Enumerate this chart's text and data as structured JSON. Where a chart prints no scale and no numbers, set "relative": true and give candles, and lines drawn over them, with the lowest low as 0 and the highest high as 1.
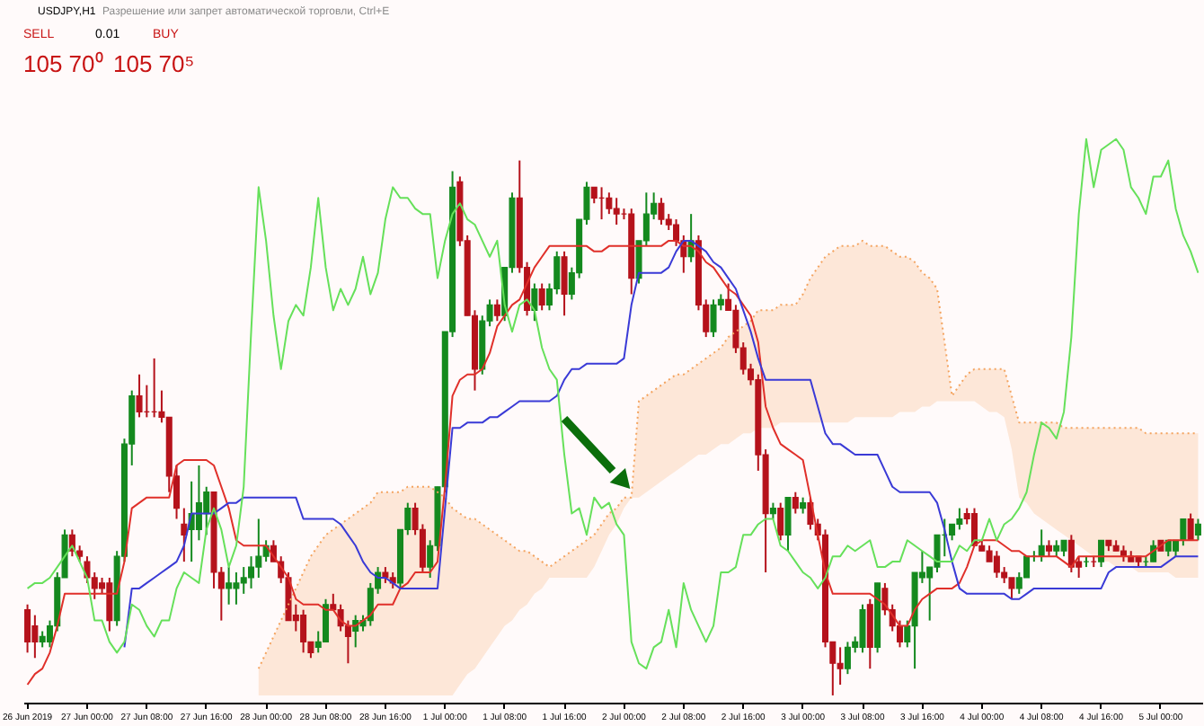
{
  "chart_data": {
    "type": "candlestick",
    "title": "USDJPY,H1",
    "relative": true,
    "categories": [
      "26 Jun 2019",
      null,
      null,
      null,
      null,
      null,
      null,
      null,
      "27 Jun 00:00",
      null,
      null,
      null,
      null,
      null,
      null,
      null,
      "27 Jun 08:00",
      null,
      null,
      null,
      null,
      null,
      null,
      null,
      "27 Jun 16:00",
      null,
      null,
      null,
      null,
      null,
      null,
      null,
      "28 Jun 00:00",
      null,
      null,
      null,
      null,
      null,
      null,
      null,
      "28 Jun 08:00",
      null,
      null,
      null,
      null,
      null,
      null,
      null,
      "28 Jun 16:00",
      null,
      null,
      null,
      null,
      null,
      null,
      null,
      "1 Jul 00:00",
      null,
      null,
      null,
      null,
      null,
      null,
      null,
      "1 Jul 08:00",
      null,
      null,
      null,
      null,
      null,
      null,
      null,
      "1 Jul 16:00",
      null,
      null,
      null,
      null,
      null,
      null,
      null,
      "2 Jul 00:00",
      null,
      null,
      null,
      null,
      null,
      null,
      null,
      "2 Jul 08:00",
      null,
      null,
      null,
      null,
      null,
      null,
      null,
      "2 Jul 16:00",
      null,
      null,
      null,
      null,
      null,
      null,
      null,
      "3 Jul 00:00",
      null,
      null,
      null,
      null,
      null,
      null,
      null,
      "3 Jul 08:00",
      null,
      null,
      null,
      null,
      null,
      null,
      null,
      "3 Jul 16:00",
      null,
      null,
      null,
      null,
      null,
      null,
      null,
      "4 Jul 00:00",
      null,
      null,
      null,
      null,
      null,
      null,
      null,
      "4 Jul 08:00",
      null,
      null,
      null,
      null,
      null,
      null,
      null,
      "4 Jul 16:00",
      null,
      null,
      null,
      null,
      null,
      null,
      null,
      "5 Jul 00:00",
      null,
      null,
      null,
      null,
      null
    ],
    "ohlc": [
      [
        0.16,
        0.17,
        0.08,
        0.1
      ],
      [
        0.13,
        0.15,
        0.07,
        0.1
      ],
      [
        0.1,
        0.12,
        0.09,
        0.11
      ],
      [
        0.1,
        0.14,
        0.09,
        0.13
      ],
      [
        0.13,
        0.23,
        0.12,
        0.22
      ],
      [
        0.22,
        0.31,
        0.22,
        0.3
      ],
      [
        0.3,
        0.31,
        0.26,
        0.27
      ],
      [
        0.27,
        0.28,
        0.25,
        0.26
      ],
      [
        0.25,
        0.26,
        0.21,
        0.22
      ],
      [
        0.22,
        0.23,
        0.18,
        0.2
      ],
      [
        0.21,
        0.22,
        0.19,
        0.2
      ],
      [
        0.21,
        0.22,
        0.12,
        0.14
      ],
      [
        0.14,
        0.27,
        0.13,
        0.26
      ],
      [
        0.26,
        0.48,
        0.25,
        0.47
      ],
      [
        0.47,
        0.57,
        0.43,
        0.56
      ],
      [
        0.56,
        0.6,
        0.52,
        0.53
      ],
      [
        0.53,
        0.58,
        0.52,
        0.53
      ],
      [
        0.53,
        0.63,
        0.52,
        0.53
      ],
      [
        0.53,
        0.57,
        0.51,
        0.52
      ],
      [
        0.52,
        0.52,
        0.38,
        0.41
      ],
      [
        0.41,
        0.43,
        0.33,
        0.35
      ],
      [
        0.32,
        0.35,
        0.25,
        0.3
      ],
      [
        0.31,
        0.4,
        0.25,
        0.34
      ],
      [
        0.31,
        0.43,
        0.29,
        0.36
      ],
      [
        0.34,
        0.39,
        0.3,
        0.38
      ],
      [
        0.38,
        0.38,
        0.2,
        0.23
      ],
      [
        0.23,
        0.24,
        0.14,
        0.2
      ],
      [
        0.2,
        0.24,
        0.17,
        0.21
      ],
      [
        0.2,
        0.23,
        0.17,
        0.21
      ],
      [
        0.21,
        0.24,
        0.19,
        0.22
      ],
      [
        0.22,
        0.26,
        0.2,
        0.24
      ],
      [
        0.24,
        0.33,
        0.22,
        0.26
      ],
      [
        0.26,
        0.29,
        0.25,
        0.28
      ],
      [
        0.28,
        0.29,
        0.25,
        0.25
      ],
      [
        0.25,
        0.26,
        0.21,
        0.22
      ],
      [
        0.22,
        0.23,
        0.14,
        0.14
      ],
      [
        0.15,
        0.17,
        0.12,
        0.14
      ],
      [
        0.15,
        0.16,
        0.08,
        0.1
      ],
      [
        0.1,
        0.1,
        0.07,
        0.08
      ],
      [
        0.09,
        0.12,
        0.08,
        0.1
      ],
      [
        0.1,
        0.18,
        0.1,
        0.17
      ],
      [
        0.17,
        0.19,
        0.16,
        0.16
      ],
      [
        0.16,
        0.17,
        0.12,
        0.13
      ],
      [
        0.13,
        0.14,
        0.06,
        0.11
      ],
      [
        0.12,
        0.15,
        0.09,
        0.14
      ],
      [
        0.13,
        0.15,
        0.12,
        0.14
      ],
      [
        0.14,
        0.21,
        0.13,
        0.2
      ],
      [
        0.2,
        0.24,
        0.19,
        0.23
      ],
      [
        0.23,
        0.24,
        0.21,
        0.22
      ],
      [
        0.22,
        0.23,
        0.2,
        0.21
      ],
      [
        0.21,
        0.31,
        0.2,
        0.31
      ],
      [
        0.31,
        0.36,
        0.3,
        0.35
      ],
      [
        0.35,
        0.36,
        0.3,
        0.31
      ],
      [
        0.31,
        0.32,
        0.23,
        0.24
      ],
      [
        0.24,
        0.29,
        0.22,
        0.28
      ],
      [
        0.28,
        0.39,
        0.27,
        0.39
      ],
      [
        0.39,
        0.68,
        0.38,
        0.68
      ],
      [
        0.68,
        0.98,
        0.67,
        0.95
      ],
      [
        0.96,
        0.97,
        0.84,
        0.85
      ],
      [
        0.85,
        0.86,
        0.71,
        0.71
      ],
      [
        0.71,
        0.72,
        0.57,
        0.61
      ],
      [
        0.61,
        0.71,
        0.6,
        0.7
      ],
      [
        0.7,
        0.74,
        0.69,
        0.73
      ],
      [
        0.73,
        0.74,
        0.7,
        0.71
      ],
      [
        0.71,
        0.8,
        0.7,
        0.8
      ],
      [
        0.8,
        0.94,
        0.79,
        0.93
      ],
      [
        0.93,
        1.0,
        0.79,
        0.8
      ],
      [
        0.8,
        0.81,
        0.71,
        0.72
      ],
      [
        0.72,
        0.77,
        0.7,
        0.76
      ],
      [
        0.76,
        0.77,
        0.72,
        0.73
      ],
      [
        0.73,
        0.77,
        0.72,
        0.76
      ],
      [
        0.76,
        0.83,
        0.75,
        0.82
      ],
      [
        0.82,
        0.83,
        0.71,
        0.75
      ],
      [
        0.75,
        0.8,
        0.74,
        0.79
      ],
      [
        0.79,
        0.89,
        0.78,
        0.89
      ],
      [
        0.89,
        0.96,
        0.88,
        0.95
      ],
      [
        0.95,
        0.95,
        0.92,
        0.93
      ],
      [
        0.93,
        0.95,
        0.89,
        0.93
      ],
      [
        0.93,
        0.94,
        0.9,
        0.91
      ],
      [
        0.91,
        0.93,
        0.88,
        0.9
      ],
      [
        0.9,
        0.91,
        0.89,
        0.9
      ],
      [
        0.9,
        0.91,
        0.75,
        0.78
      ],
      [
        0.78,
        0.85,
        0.77,
        0.85
      ],
      [
        0.85,
        0.94,
        0.84,
        0.9
      ],
      [
        0.9,
        0.94,
        0.89,
        0.92
      ],
      [
        0.92,
        0.93,
        0.88,
        0.89
      ],
      [
        0.89,
        0.9,
        0.87,
        0.88
      ],
      [
        0.88,
        0.89,
        0.84,
        0.85
      ],
      [
        0.85,
        0.86,
        0.79,
        0.82
      ],
      [
        0.82,
        0.9,
        0.81,
        0.85
      ],
      [
        0.85,
        0.86,
        0.72,
        0.73
      ],
      [
        0.73,
        0.74,
        0.67,
        0.68
      ],
      [
        0.68,
        0.74,
        0.67,
        0.73
      ],
      [
        0.73,
        0.75,
        0.72,
        0.74
      ],
      [
        0.74,
        0.77,
        0.72,
        0.72
      ],
      [
        0.72,
        0.73,
        0.64,
        0.65
      ],
      [
        0.65,
        0.66,
        0.6,
        0.61
      ],
      [
        0.61,
        0.62,
        0.58,
        0.59
      ],
      [
        0.59,
        0.6,
        0.42,
        0.45
      ],
      [
        0.45,
        0.46,
        0.23,
        0.34
      ],
      [
        0.34,
        0.36,
        0.33,
        0.35
      ],
      [
        0.35,
        0.36,
        0.29,
        0.3
      ],
      [
        0.3,
        0.37,
        0.27,
        0.37
      ],
      [
        0.37,
        0.38,
        0.34,
        0.35
      ],
      [
        0.35,
        0.37,
        0.34,
        0.36
      ],
      [
        0.36,
        0.37,
        0.31,
        0.32
      ],
      [
        0.32,
        0.33,
        0.29,
        0.3
      ],
      [
        0.3,
        0.31,
        0.09,
        0.1
      ],
      [
        0.1,
        0.1,
        0.0,
        0.06
      ],
      [
        0.06,
        0.09,
        0.02,
        0.05
      ],
      [
        0.05,
        0.1,
        0.04,
        0.09
      ],
      [
        0.09,
        0.11,
        0.08,
        0.1
      ],
      [
        0.09,
        0.17,
        0.08,
        0.16
      ],
      [
        0.17,
        0.18,
        0.05,
        0.09
      ],
      [
        0.09,
        0.21,
        0.08,
        0.21
      ],
      [
        0.2,
        0.21,
        0.15,
        0.16
      ],
      [
        0.16,
        0.17,
        0.12,
        0.13
      ],
      [
        0.13,
        0.14,
        0.09,
        0.1
      ],
      [
        0.1,
        0.14,
        0.09,
        0.13
      ],
      [
        0.13,
        0.23,
        0.05,
        0.23
      ],
      [
        0.22,
        0.27,
        0.21,
        0.23
      ],
      [
        0.22,
        0.24,
        0.14,
        0.24
      ],
      [
        0.24,
        0.3,
        0.23,
        0.3
      ],
      [
        0.3,
        0.33,
        0.26,
        0.3
      ],
      [
        0.3,
        0.32,
        0.29,
        0.32
      ],
      [
        0.32,
        0.35,
        0.31,
        0.33
      ],
      [
        0.34,
        0.35,
        0.32,
        0.33
      ],
      [
        0.34,
        0.35,
        0.28,
        0.28
      ],
      [
        0.28,
        0.29,
        0.27,
        0.27
      ],
      [
        0.27,
        0.28,
        0.25,
        0.25
      ],
      [
        0.26,
        0.27,
        0.22,
        0.23
      ],
      [
        0.23,
        0.24,
        0.21,
        0.22
      ],
      [
        0.22,
        0.22,
        0.18,
        0.2
      ],
      [
        0.2,
        0.23,
        0.19,
        0.22
      ],
      [
        0.22,
        0.26,
        0.22,
        0.26
      ],
      [
        0.26,
        0.27,
        0.25,
        0.26
      ],
      [
        0.26,
        0.31,
        0.25,
        0.28
      ],
      [
        0.28,
        0.29,
        0.26,
        0.27
      ],
      [
        0.27,
        0.29,
        0.26,
        0.28
      ],
      [
        0.27,
        0.29,
        0.26,
        0.29
      ],
      [
        0.29,
        0.3,
        0.23,
        0.24
      ],
      [
        0.25,
        0.26,
        0.22,
        0.24
      ],
      [
        0.25,
        0.26,
        0.24,
        0.25
      ],
      [
        0.25,
        0.26,
        0.24,
        0.25
      ],
      [
        0.25,
        0.29,
        0.24,
        0.29
      ],
      [
        0.29,
        0.29,
        0.27,
        0.28
      ],
      [
        0.28,
        0.29,
        0.27,
        0.27
      ],
      [
        0.27,
        0.28,
        0.25,
        0.26
      ],
      [
        0.26,
        0.27,
        0.25,
        0.25
      ],
      [
        0.26,
        0.26,
        0.24,
        0.25
      ],
      [
        0.25,
        0.26,
        0.24,
        0.25
      ],
      [
        0.25,
        0.29,
        0.25,
        0.28
      ],
      [
        0.29,
        0.29,
        0.27,
        0.27
      ],
      [
        0.27,
        0.29,
        0.26,
        0.29
      ],
      [
        0.27,
        0.29,
        0.26,
        0.29
      ],
      [
        0.29,
        0.33,
        0.28,
        0.33
      ],
      [
        0.33,
        0.34,
        0.29,
        0.29
      ],
      [
        0.3,
        0.33,
        0.29,
        0.32
      ]
    ],
    "colors": [
      "#b5121b",
      "#b5121b",
      "#14891e",
      "#14891e",
      "#14891e",
      "#14891e",
      "#b5121b",
      "#b5121b",
      "#b5121b",
      "#b5121b",
      "#b5121b",
      "#b5121b",
      "#14891e",
      "#14891e",
      "#14891e",
      "#b5121b",
      "#b5121b",
      "#b5121b",
      "#b5121b",
      "#b5121b",
      "#b5121b",
      "#b5121b",
      "#14891e",
      "#14891e",
      "#14891e",
      "#b5121b",
      "#b5121b",
      "#14891e",
      "#14891e",
      "#14891e",
      "#14891e",
      "#14891e",
      "#14891e",
      "#b5121b",
      "#b5121b",
      "#b5121b",
      "#b5121b",
      "#b5121b",
      "#b5121b",
      "#14891e",
      "#14891e",
      "#b5121b",
      "#b5121b",
      "#b5121b",
      "#14891e",
      "#14891e",
      "#14891e",
      "#14891e",
      "#b5121b",
      "#b5121b",
      "#14891e",
      "#14891e",
      "#b5121b",
      "#b5121b",
      "#14891e",
      "#14891e",
      "#14891e",
      "#14891e",
      "#b5121b",
      "#b5121b",
      "#b5121b",
      "#14891e",
      "#14891e",
      "#b5121b",
      "#14891e",
      "#14891e",
      "#b5121b",
      "#b5121b",
      "#14891e",
      "#b5121b",
      "#14891e",
      "#14891e",
      "#b5121b",
      "#14891e",
      "#14891e",
      "#14891e",
      "#b5121b",
      "#b5121b",
      "#b5121b",
      "#b5121b",
      "#b5121b",
      "#b5121b",
      "#14891e",
      "#14891e",
      "#14891e",
      "#b5121b",
      "#b5121b",
      "#b5121b",
      "#b5121b",
      "#14891e",
      "#b5121b",
      "#b5121b",
      "#14891e",
      "#14891e",
      "#b5121b",
      "#b5121b",
      "#b5121b",
      "#b5121b",
      "#b5121b",
      "#b5121b",
      "#14891e",
      "#b5121b",
      "#14891e",
      "#b5121b",
      "#14891e",
      "#b5121b",
      "#b5121b",
      "#b5121b",
      "#b5121b",
      "#b5121b",
      "#14891e",
      "#14891e",
      "#14891e",
      "#b5121b",
      "#14891e",
      "#b5121b",
      "#b5121b",
      "#b5121b",
      "#14891e",
      "#14891e",
      "#14891e",
      "#14891e",
      "#14891e",
      "#14891e",
      "#14891e",
      "#14891e",
      "#b5121b",
      "#b5121b",
      "#b5121b",
      "#b5121b",
      "#b5121b",
      "#b5121b",
      "#b5121b",
      "#14891e",
      "#14891e",
      "#14891e",
      "#14891e",
      "#b5121b",
      "#14891e",
      "#14891e",
      "#b5121b",
      "#b5121b",
      "#14891e",
      "#b5121b",
      "#14891e",
      "#b5121b",
      "#b5121b",
      "#b5121b",
      "#b5121b",
      "#b5121b",
      "#14891e",
      "#14891e",
      "#b5121b",
      "#14891e",
      "#14891e",
      "#14891e",
      "#b5121b",
      "#14891e"
    ],
    "series": [
      {
        "type": "line",
        "color": "#f4a460",
        "line_style": "dotted",
        "values": [
          null,
          null,
          null,
          null,
          null,
          null,
          null,
          null,
          null,
          null,
          null,
          null,
          null,
          null,
          null,
          null,
          null,
          null,
          null,
          null,
          null,
          null,
          null,
          null,
          null,
          null,
          null,
          null,
          null,
          null,
          null,
          0.05,
          0.08,
          0.11,
          0.14,
          0.17,
          0.2,
          0.23,
          0.26,
          0.28,
          0.3,
          0.31,
          0.32,
          0.33,
          0.34,
          0.35,
          0.36,
          0.38,
          0.38,
          0.38,
          0.38,
          0.39,
          0.39,
          0.39,
          0.39,
          0.38,
          0.37,
          0.35,
          0.34,
          0.33,
          0.33,
          0.32,
          0.31,
          0.3,
          0.29,
          0.28,
          0.27,
          0.27,
          0.26,
          0.25,
          0.24,
          0.25,
          0.26,
          0.27,
          0.28,
          0.29,
          0.3,
          0.32,
          0.34,
          0.35,
          0.37,
          0.37,
          0.55,
          0.56,
          0.57,
          0.58,
          0.59,
          0.6,
          0.6,
          0.61,
          0.62,
          0.63,
          0.64,
          0.65,
          0.67,
          0.68,
          0.69,
          0.7,
          0.72,
          0.72,
          0.72,
          0.73,
          0.73,
          0.73,
          0.75,
          0.78,
          0.8,
          0.82,
          0.83,
          0.84,
          0.84,
          0.84,
          0.85,
          0.84,
          0.84,
          0.84,
          0.83,
          0.82,
          0.82,
          0.81,
          0.79,
          0.78,
          0.76,
          0.66,
          0.56,
          0.58,
          0.6,
          0.61,
          0.61,
          0.61,
          0.61,
          0.61,
          0.56,
          0.51,
          0.51,
          0.51,
          0.51,
          0.51,
          0.51,
          0.5,
          0.5,
          0.5,
          0.5,
          0.5,
          0.5,
          0.5,
          0.5,
          0.5,
          0.5,
          0.5,
          0.49,
          0.49,
          0.49,
          0.49,
          0.49,
          0.49,
          0.49,
          0.49
        ],
        "lower": [
          null,
          null,
          null,
          null,
          null,
          null,
          null,
          null,
          null,
          null,
          null,
          null,
          null,
          null,
          null,
          null,
          null,
          null,
          null,
          null,
          null,
          null,
          null,
          null,
          null,
          null,
          null,
          null,
          null,
          null,
          null,
          0.0,
          0.0,
          0.0,
          0.0,
          0.0,
          0.0,
          0.0,
          0.0,
          0.0,
          0.0,
          0.0,
          0.0,
          0.0,
          0.0,
          0.0,
          0.0,
          0.0,
          0.0,
          0.0,
          0.0,
          0.0,
          0.0,
          0.0,
          0.0,
          0.0,
          0.0,
          0.0,
          0.02,
          0.04,
          0.05,
          0.07,
          0.09,
          0.11,
          0.13,
          0.14,
          0.16,
          0.17,
          0.19,
          0.2,
          0.22,
          0.22,
          0.22,
          0.22,
          0.22,
          0.22,
          0.24,
          0.27,
          0.3,
          0.32,
          0.35,
          0.37,
          0.37,
          0.38,
          0.39,
          0.4,
          0.41,
          0.42,
          0.43,
          0.44,
          0.45,
          0.45,
          0.46,
          0.47,
          0.47,
          0.48,
          0.49,
          0.49,
          0.5,
          0.5,
          0.5,
          0.51,
          0.51,
          0.51,
          0.51,
          0.51,
          0.51,
          0.51,
          0.51,
          0.51,
          0.51,
          0.52,
          0.52,
          0.52,
          0.52,
          0.52,
          0.52,
          0.53,
          0.53,
          0.53,
          0.54,
          0.54,
          0.55,
          0.55,
          0.55,
          0.55,
          0.55,
          0.55,
          0.54,
          0.53,
          0.53,
          0.52,
          0.46,
          0.37,
          0.36,
          0.34,
          0.33,
          0.32,
          0.31,
          0.3,
          0.29,
          0.28,
          0.27,
          0.26,
          0.25,
          0.25,
          0.24,
          0.24,
          0.24,
          0.23,
          0.23,
          0.23,
          0.23,
          0.23,
          0.22,
          0.22,
          0.22,
          0.22
        ],
        "upper": [
          null,
          null,
          null,
          null,
          null,
          null,
          null,
          null,
          null,
          null,
          null,
          null,
          null,
          null,
          null,
          null,
          null,
          null,
          null,
          null,
          null,
          null,
          null,
          null,
          null,
          null,
          null,
          null,
          null,
          null,
          null,
          0.05,
          0.08,
          0.11,
          0.14,
          0.17,
          0.2,
          0.23,
          0.26,
          0.28,
          0.3,
          0.31,
          0.32,
          0.33,
          0.34,
          0.35,
          0.36,
          0.38,
          0.38,
          0.38,
          0.38,
          0.39,
          0.39,
          0.39,
          0.39,
          0.38,
          0.37,
          0.35,
          0.34,
          0.33,
          0.33,
          0.32,
          0.31,
          0.3,
          0.29,
          0.28,
          0.27,
          0.27,
          0.26,
          0.25,
          0.24,
          0.25,
          0.26,
          0.27,
          0.28,
          0.29,
          0.3,
          0.32,
          0.34,
          0.35,
          0.37,
          0.37,
          0.55,
          0.56,
          0.57,
          0.58,
          0.59,
          0.6,
          0.6,
          0.61,
          0.62,
          0.63,
          0.64,
          0.65,
          0.67,
          0.68,
          0.69,
          0.7,
          0.72,
          0.72,
          0.72,
          0.73,
          0.73,
          0.73,
          0.75,
          0.78,
          0.8,
          0.82,
          0.83,
          0.84,
          0.84,
          0.84,
          0.85,
          0.84,
          0.84,
          0.84,
          0.83,
          0.82,
          0.82,
          0.81,
          0.79,
          0.78,
          0.76,
          0.66,
          0.56,
          0.58,
          0.6,
          0.61,
          0.61,
          0.61,
          0.61,
          0.61,
          0.56,
          0.51,
          0.51,
          0.51,
          0.51,
          0.51,
          0.51,
          0.5,
          0.5,
          0.5,
          0.5,
          0.5,
          0.5,
          0.5,
          0.5,
          0.5,
          0.5,
          0.5,
          0.49,
          0.49,
          0.49,
          0.49,
          0.49,
          0.49,
          0.49,
          0.49
        ]
      },
      {
        "type": "line",
        "color": "#e0302a",
        "values": [
          0.02,
          0.04,
          0.05,
          0.08,
          0.13,
          0.19,
          0.19,
          0.19,
          0.19,
          0.19,
          0.19,
          0.19,
          0.19,
          0.25,
          0.35,
          0.36,
          0.37,
          0.37,
          0.37,
          0.37,
          0.43,
          0.44,
          0.44,
          0.44,
          0.44,
          0.43,
          0.39,
          0.35,
          0.29,
          0.28,
          0.28,
          0.28,
          0.28,
          0.26,
          0.24,
          0.22,
          0.18,
          0.17,
          0.17,
          0.17,
          0.16,
          0.16,
          0.14,
          0.13,
          0.13,
          0.14,
          0.15,
          0.17,
          0.17,
          0.17,
          0.2,
          0.21,
          0.23,
          0.23,
          0.23,
          0.25,
          0.39,
          0.56,
          0.59,
          0.6,
          0.6,
          0.61,
          0.64,
          0.69,
          0.71,
          0.73,
          0.74,
          0.77,
          0.8,
          0.82,
          0.84,
          0.84,
          0.84,
          0.84,
          0.84,
          0.84,
          0.83,
          0.83,
          0.84,
          0.84,
          0.84,
          0.84,
          0.84,
          0.84,
          0.84,
          0.84,
          0.85,
          0.85,
          0.84,
          0.84,
          0.83,
          0.81,
          0.8,
          0.78,
          0.76,
          0.75,
          0.73,
          0.71,
          0.66,
          0.54,
          0.5,
          0.47,
          0.46,
          0.45,
          0.44,
          0.37,
          0.3,
          0.23,
          0.19,
          0.19,
          0.19,
          0.19,
          0.19,
          0.19,
          0.18,
          0.17,
          0.15,
          0.13,
          0.13,
          0.16,
          0.18,
          0.19,
          0.2,
          0.2,
          0.2,
          0.21,
          0.24,
          0.28,
          0.29,
          0.29,
          0.29,
          0.28,
          0.27,
          0.27,
          0.26,
          0.26,
          0.26,
          0.26,
          0.26,
          0.25,
          0.24,
          0.26,
          0.26,
          0.26,
          0.26,
          0.26,
          0.26,
          0.26,
          0.26,
          0.26,
          0.26,
          0.27,
          0.28,
          0.29,
          0.29,
          0.29,
          0.29,
          0.29
        ]
      },
      {
        "type": "line",
        "color": "#3a3ad6",
        "values": [
          null,
          null,
          null,
          null,
          null,
          null,
          null,
          null,
          null,
          null,
          null,
          null,
          null,
          0.09,
          0.2,
          0.2,
          0.21,
          0.22,
          0.23,
          0.24,
          0.25,
          0.28,
          0.34,
          0.34,
          0.34,
          0.34,
          0.35,
          0.36,
          0.36,
          0.37,
          0.37,
          0.37,
          0.37,
          0.37,
          0.37,
          0.37,
          0.37,
          0.33,
          0.33,
          0.33,
          0.33,
          0.33,
          0.32,
          0.3,
          0.28,
          0.25,
          0.23,
          0.22,
          0.22,
          0.21,
          0.2,
          0.2,
          0.2,
          0.2,
          0.2,
          0.2,
          0.35,
          0.5,
          0.5,
          0.51,
          0.51,
          0.51,
          0.52,
          0.52,
          0.53,
          0.54,
          0.55,
          0.55,
          0.55,
          0.55,
          0.55,
          0.56,
          0.59,
          0.61,
          0.61,
          0.62,
          0.62,
          0.62,
          0.62,
          0.62,
          0.63,
          0.73,
          0.79,
          0.79,
          0.79,
          0.79,
          0.8,
          0.83,
          0.85,
          0.85,
          0.84,
          0.83,
          0.81,
          0.8,
          0.78,
          0.76,
          0.72,
          0.68,
          0.63,
          0.59,
          0.59,
          0.59,
          0.59,
          0.59,
          0.59,
          0.59,
          0.54,
          0.49,
          0.47,
          0.47,
          0.46,
          0.45,
          0.45,
          0.45,
          0.45,
          0.42,
          0.39,
          0.38,
          0.38,
          0.38,
          0.38,
          0.38,
          0.36,
          0.31,
          0.25,
          0.2,
          0.19,
          0.19,
          0.19,
          0.19,
          0.19,
          0.19,
          0.18,
          0.18,
          0.19,
          0.2,
          0.2,
          0.2,
          0.2,
          0.2,
          0.2,
          0.2,
          0.2,
          0.2,
          0.2,
          0.23,
          0.24,
          0.24,
          0.24,
          0.24,
          0.24,
          0.24,
          0.24,
          0.25,
          0.26,
          0.26,
          0.26,
          0.26
        ]
      },
      {
        "type": "line",
        "color": "#66e05a",
        "values": [
          0.2,
          0.21,
          0.21,
          0.22,
          0.24,
          0.26,
          0.28,
          0.25,
          0.22,
          0.14,
          0.14,
          0.1,
          0.08,
          0.1,
          0.17,
          0.16,
          0.13,
          0.11,
          0.14,
          0.14,
          0.2,
          0.23,
          0.22,
          0.21,
          0.31,
          0.35,
          0.31,
          0.24,
          0.28,
          0.39,
          0.68,
          0.95,
          0.85,
          0.71,
          0.61,
          0.7,
          0.73,
          0.71,
          0.8,
          0.93,
          0.8,
          0.72,
          0.76,
          0.73,
          0.76,
          0.82,
          0.75,
          0.79,
          0.89,
          0.95,
          0.93,
          0.93,
          0.91,
          0.9,
          0.9,
          0.78,
          0.85,
          0.9,
          0.92,
          0.89,
          0.88,
          0.85,
          0.82,
          0.85,
          0.73,
          0.68,
          0.73,
          0.74,
          0.72,
          0.65,
          0.61,
          0.59,
          0.45,
          0.34,
          0.35,
          0.3,
          0.37,
          0.35,
          0.36,
          0.32,
          0.3,
          0.1,
          0.06,
          0.05,
          0.09,
          0.1,
          0.16,
          0.09,
          0.21,
          0.16,
          0.13,
          0.1,
          0.13,
          0.23,
          0.23,
          0.24,
          0.3,
          0.3,
          0.32,
          0.33,
          0.33,
          0.28,
          0.27,
          0.25,
          0.23,
          0.22,
          0.2,
          0.22,
          0.26,
          0.26,
          0.28,
          0.27,
          0.28,
          0.29,
          0.24,
          0.24,
          0.25,
          0.25,
          0.29,
          0.28,
          0.27,
          0.26,
          0.25,
          0.25,
          0.25,
          0.28,
          0.27,
          0.29,
          0.29,
          0.33,
          0.29,
          0.32,
          0.33,
          0.35,
          0.38,
          0.45,
          0.51,
          0.5,
          0.48,
          0.53,
          0.67,
          0.9,
          1.04,
          0.95,
          1.02,
          1.03,
          1.04,
          1.02,
          0.95,
          0.93,
          0.9,
          0.97,
          0.97,
          1.0,
          0.91,
          0.86,
          0.83,
          0.79
        ]
      }
    ],
    "annotations": [
      "SELL",
      "0.01",
      "BUY",
      "105 70⁰",
      "105 70⁵",
      "Разрешение или запрет автоматической торговли, Ctrl+E"
    ]
  }
}
